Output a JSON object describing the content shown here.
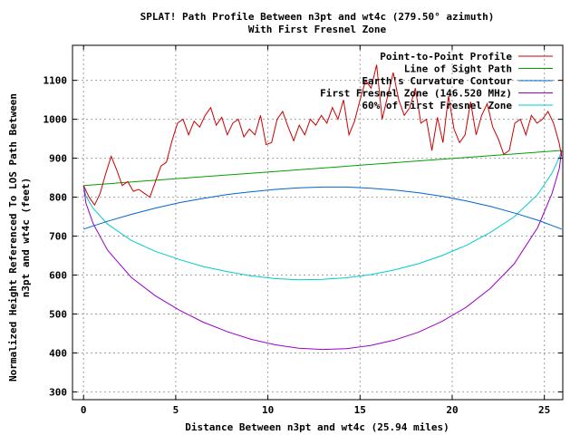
{
  "chart_data": {
    "type": "line",
    "title": "SPLAT! Path Profile Between n3pt and wt4c (279.50° azimuth)",
    "subtitle": "With First Fresnel Zone",
    "xlabel": "Distance Between n3pt and wt4c (25.94 miles)",
    "ylabel_lines": [
      "Normalized Height Referenced To LOS Path Between",
      "n3pt and wt4c (feet)"
    ],
    "xlim": [
      -0.6,
      26.0
    ],
    "ylim": [
      280,
      1190
    ],
    "x_ticks": [
      0,
      5,
      10,
      15,
      20,
      25
    ],
    "y_ticks": [
      300,
      400,
      500,
      600,
      700,
      800,
      900,
      1000,
      1100
    ],
    "grid": true,
    "legend_position": "top-right",
    "series": [
      {
        "name": "Point-to-Point Profile",
        "color": "#cc0000",
        "x": [
          0,
          0.3,
          0.6,
          0.9,
          1.2,
          1.5,
          1.8,
          2.1,
          2.4,
          2.7,
          3.0,
          3.3,
          3.6,
          3.9,
          4.2,
          4.5,
          4.8,
          5.1,
          5.4,
          5.7,
          6.0,
          6.3,
          6.6,
          6.9,
          7.2,
          7.5,
          7.8,
          8.1,
          8.4,
          8.7,
          9.0,
          9.3,
          9.6,
          9.9,
          10.2,
          10.5,
          10.8,
          11.1,
          11.4,
          11.7,
          12.0,
          12.3,
          12.6,
          12.9,
          13.2,
          13.5,
          13.8,
          14.1,
          14.4,
          14.7,
          15.0,
          15.3,
          15.6,
          15.9,
          16.2,
          16.5,
          16.8,
          17.1,
          17.4,
          17.7,
          18.0,
          18.3,
          18.6,
          18.9,
          19.2,
          19.5,
          19.8,
          20.1,
          20.4,
          20.7,
          21.0,
          21.3,
          21.6,
          21.9,
          22.2,
          22.5,
          22.8,
          23.1,
          23.4,
          23.7,
          24.0,
          24.3,
          24.6,
          24.9,
          25.2,
          25.5,
          25.8,
          25.94
        ],
        "y": [
          830,
          800,
          780,
          810,
          860,
          905,
          870,
          830,
          840,
          815,
          820,
          810,
          800,
          840,
          880,
          890,
          945,
          990,
          1000,
          960,
          995,
          980,
          1010,
          1030,
          985,
          1005,
          960,
          990,
          1000,
          955,
          975,
          960,
          1010,
          935,
          940,
          1000,
          1020,
          980,
          945,
          985,
          960,
          1000,
          985,
          1010,
          990,
          1030,
          1000,
          1050,
          960,
          995,
          1050,
          1100,
          1080,
          1140,
          1000,
          1060,
          1120,
          1050,
          1010,
          1030,
          1080,
          990,
          1000,
          920,
          1005,
          940,
          1060,
          975,
          940,
          960,
          1045,
          960,
          1010,
          1040,
          980,
          950,
          910,
          920,
          990,
          1000,
          960,
          1010,
          990,
          1000,
          1020,
          990,
          940,
          905
        ]
      },
      {
        "name": "Line of Sight Path",
        "color": "#00a000",
        "x": [
          0,
          25.94
        ],
        "y": [
          830,
          920
        ]
      },
      {
        "name": "Earth's Curvature Contour",
        "color": "#0066cc",
        "x": [
          0,
          1.3,
          2.6,
          3.9,
          5.2,
          6.5,
          7.8,
          9.1,
          10.4,
          11.7,
          13.0,
          14.3,
          15.6,
          16.9,
          18.2,
          19.5,
          20.8,
          22.1,
          23.4,
          24.7,
          25.94
        ],
        "y": [
          718,
          738,
          756,
          772,
          786,
          797,
          807,
          814,
          820,
          824,
          826,
          826,
          823,
          818,
          811,
          802,
          790,
          776,
          759,
          740,
          718
        ]
      },
      {
        "name": "First Fresnel Zone (146.520 MHz)",
        "color": "#9900cc",
        "x": [
          0,
          0.13,
          0.52,
          1.3,
          2.59,
          3.89,
          5.19,
          6.49,
          7.78,
          9.08,
          10.38,
          11.67,
          12.97,
          14.27,
          15.56,
          16.86,
          18.16,
          19.45,
          20.75,
          22.05,
          23.35,
          24.64,
          25.42,
          25.81,
          25.94
        ],
        "y": [
          830,
          785,
          732,
          664,
          594,
          547,
          510,
          479,
          455,
          435,
          421,
          412,
          409,
          411,
          419,
          433,
          453,
          481,
          517,
          565,
          628,
          722,
          810,
          873,
          920
        ]
      },
      {
        "name": "60% of First Fresnel Zone",
        "color": "#00cccc",
        "x": [
          0,
          0.13,
          0.52,
          1.3,
          2.59,
          3.89,
          5.19,
          6.49,
          7.78,
          9.08,
          10.38,
          11.67,
          12.97,
          14.27,
          15.56,
          16.86,
          18.16,
          19.45,
          20.75,
          22.05,
          23.35,
          24.64,
          25.42,
          25.81,
          25.94
        ],
        "y": [
          830,
          803,
          771,
          731,
          689,
          661,
          640,
          622,
          609,
          598,
          591,
          588,
          589,
          593,
          601,
          613,
          629,
          650,
          676,
          709,
          749,
          807,
          862,
          902,
          920
        ]
      }
    ]
  }
}
